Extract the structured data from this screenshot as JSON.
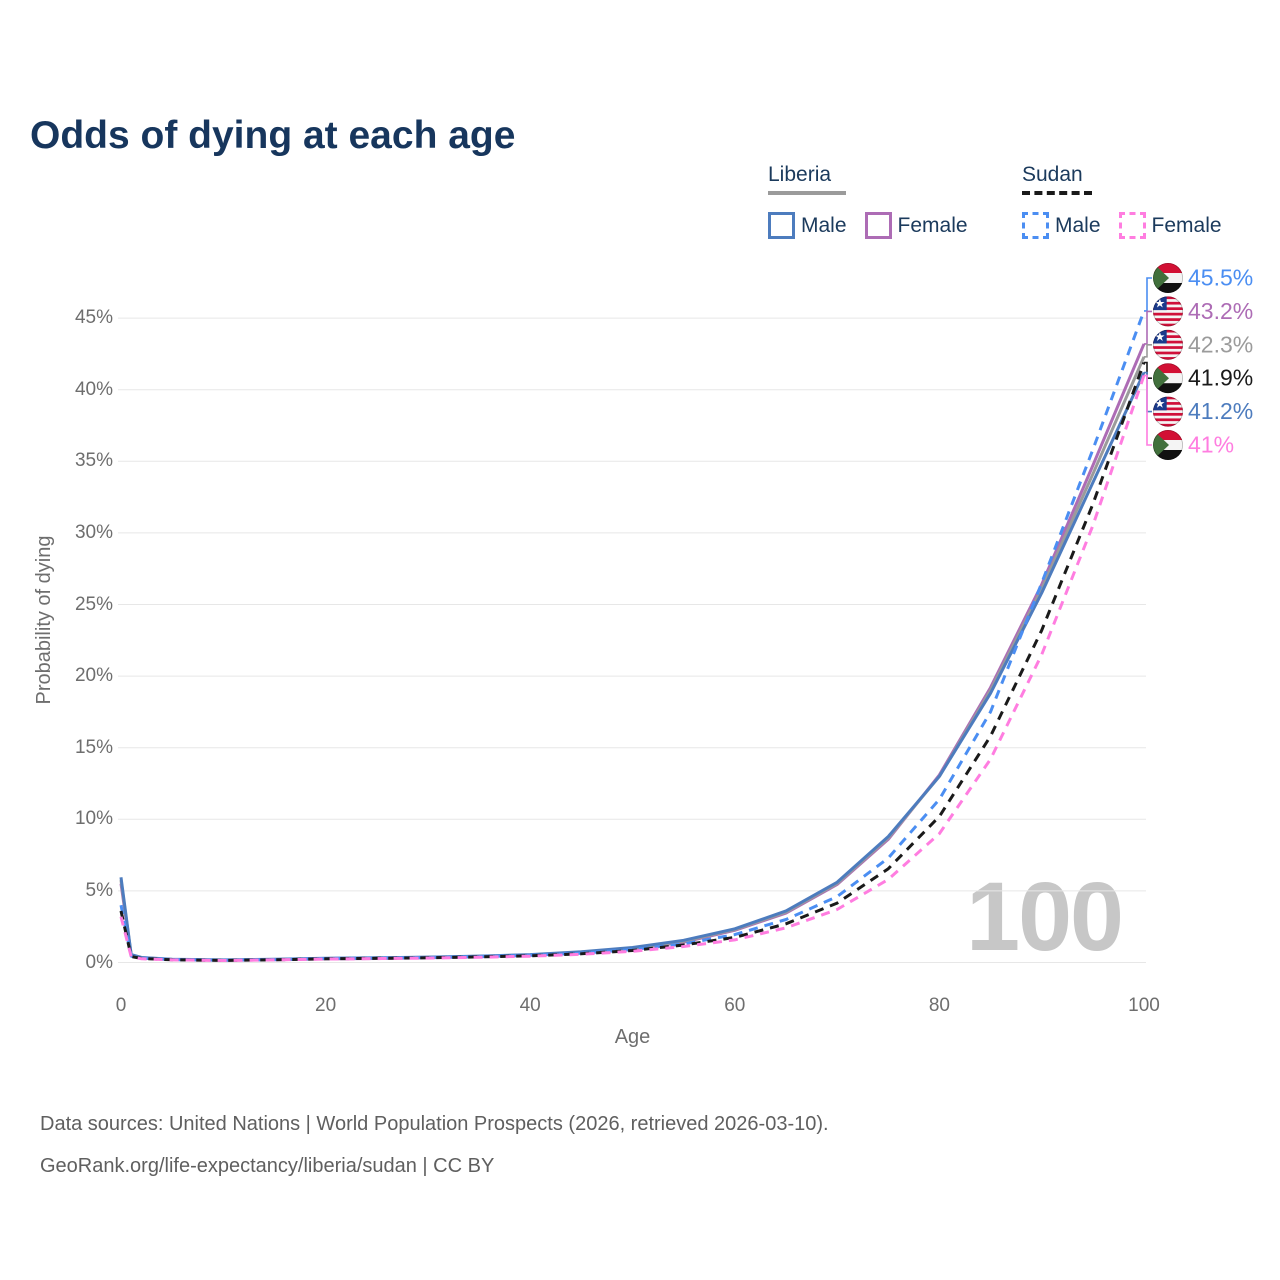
{
  "title": "Odds of dying at each age",
  "watermark": "100",
  "legend": {
    "groups": [
      {
        "country": "Liberia",
        "underline_color": "#9b9b9b",
        "underline_style": "solid",
        "items": [
          {
            "label": "Male",
            "color": "#4d7cbe",
            "dashed": false
          },
          {
            "label": "Female",
            "color": "#ad6cb5",
            "dashed": false
          }
        ]
      },
      {
        "country": "Sudan",
        "underline_color": "#1a1a1a",
        "underline_style": "dashed",
        "items": [
          {
            "label": "Male",
            "color": "#4b8ef2",
            "dashed": true
          },
          {
            "label": "Female",
            "color": "#ff7de0",
            "dashed": true
          }
        ]
      }
    ]
  },
  "footer": {
    "line1": "Data sources: United Nations | World Population Prospects (2026, retrieved 2026-03-10).",
    "line2": "GeoRank.org/life-expectancy/liberia/sudan | CC BY"
  },
  "chart_data": {
    "type": "line",
    "title": "Odds of dying at each age",
    "xlabel": "Age",
    "ylabel": "Probability of dying",
    "xlim": [
      0,
      100
    ],
    "ylim": [
      0,
      48.5
    ],
    "grid": "horizontal",
    "legend_position": "top-right",
    "x_ticks": [
      {
        "value": 0,
        "label": "0"
      },
      {
        "value": 20,
        "label": "20"
      },
      {
        "value": 40,
        "label": "40"
      },
      {
        "value": 60,
        "label": "60"
      },
      {
        "value": 80,
        "label": "80"
      },
      {
        "value": 100,
        "label": "100"
      }
    ],
    "y_ticks": [
      {
        "value": 0,
        "label": "0%"
      },
      {
        "value": 5,
        "label": "5%"
      },
      {
        "value": 10,
        "label": "10%"
      },
      {
        "value": 15,
        "label": "15%"
      },
      {
        "value": 20,
        "label": "20%"
      },
      {
        "value": 25,
        "label": "25%"
      },
      {
        "value": 30,
        "label": "30%"
      },
      {
        "value": 35,
        "label": "35%"
      },
      {
        "value": 40,
        "label": "40%"
      },
      {
        "value": 45,
        "label": "45%"
      }
    ],
    "x": [
      0,
      1,
      2,
      5,
      10,
      15,
      20,
      25,
      30,
      35,
      40,
      45,
      50,
      55,
      60,
      65,
      70,
      75,
      80,
      85,
      90,
      95,
      100
    ],
    "series": [
      {
        "name": "Sudan Male",
        "flag": "sudan",
        "color": "#4b8ef2",
        "dashed": true,
        "end_label": "45.5%",
        "values": [
          4.0,
          0.45,
          0.3,
          0.2,
          0.16,
          0.2,
          0.28,
          0.31,
          0.35,
          0.42,
          0.5,
          0.65,
          0.9,
          1.3,
          1.95,
          3.0,
          4.6,
          7.3,
          11.4,
          17.5,
          26.5,
          35.8,
          45.5
        ]
      },
      {
        "name": "Liberia Female",
        "flag": "liberia",
        "color": "#ad6cb5",
        "dashed": false,
        "end_label": "43.2%",
        "values": [
          5.5,
          0.5,
          0.32,
          0.2,
          0.16,
          0.19,
          0.25,
          0.28,
          0.33,
          0.4,
          0.5,
          0.68,
          0.95,
          1.42,
          2.25,
          3.45,
          5.45,
          8.6,
          13.1,
          19.2,
          26.4,
          34.7,
          43.2
        ]
      },
      {
        "name": "Liberia",
        "flag": "liberia",
        "color": "#9b9b9b",
        "dashed": false,
        "end_label": "42.3%",
        "values": [
          5.75,
          0.53,
          0.34,
          0.21,
          0.17,
          0.21,
          0.28,
          0.31,
          0.36,
          0.43,
          0.53,
          0.71,
          1.0,
          1.48,
          2.3,
          3.52,
          5.52,
          8.7,
          13.0,
          19.0,
          26.1,
          34.1,
          42.3
        ]
      },
      {
        "name": "Sudan",
        "flag": "sudan",
        "color": "#1a1a1a",
        "dashed": true,
        "end_label": "41.9%",
        "values": [
          3.6,
          0.42,
          0.28,
          0.19,
          0.15,
          0.19,
          0.26,
          0.29,
          0.33,
          0.39,
          0.47,
          0.61,
          0.84,
          1.22,
          1.75,
          2.7,
          4.15,
          6.55,
          10.2,
          15.8,
          23.2,
          32.0,
          41.9
        ]
      },
      {
        "name": "Liberia Male",
        "flag": "liberia",
        "color": "#4d7cbe",
        "dashed": false,
        "end_label": "41.2%",
        "values": [
          5.95,
          0.55,
          0.35,
          0.22,
          0.18,
          0.22,
          0.3,
          0.33,
          0.38,
          0.45,
          0.55,
          0.75,
          1.05,
          1.55,
          2.35,
          3.6,
          5.6,
          8.8,
          13.0,
          18.8,
          25.8,
          33.5,
          41.2
        ]
      },
      {
        "name": "Sudan Female",
        "flag": "sudan",
        "color": "#ff7de0",
        "dashed": true,
        "end_label": "41%",
        "values": [
          3.2,
          0.4,
          0.26,
          0.18,
          0.14,
          0.18,
          0.24,
          0.27,
          0.31,
          0.36,
          0.44,
          0.57,
          0.78,
          1.12,
          1.58,
          2.42,
          3.7,
          5.8,
          9.0,
          14.2,
          21.5,
          30.5,
          41.0
        ]
      }
    ]
  }
}
